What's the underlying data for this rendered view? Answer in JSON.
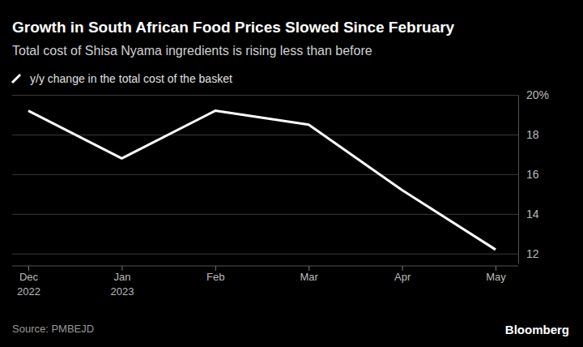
{
  "chart_data": {
    "type": "line",
    "title": "Growth in South African Food Prices Slowed Since February",
    "subtitle": "Total cost of Shisa Nyama ingredients is rising less than before",
    "source": "Source: PMBEJD",
    "credit": "Bloomberg",
    "categories": [
      "Dec 2022",
      "Jan 2023",
      "Feb",
      "Mar",
      "Apr",
      "May"
    ],
    "series": [
      {
        "name": "y/y change in the total cost of the basket",
        "color": "#ffffff",
        "values": [
          19.2,
          16.8,
          19.2,
          18.5,
          15.2,
          12.2
        ]
      }
    ],
    "ylim": [
      11.5,
      20
    ],
    "yticks": [
      12,
      14,
      16,
      18,
      {
        "value": 20,
        "label": "20%"
      }
    ],
    "grid": true,
    "legend": "top-left"
  }
}
